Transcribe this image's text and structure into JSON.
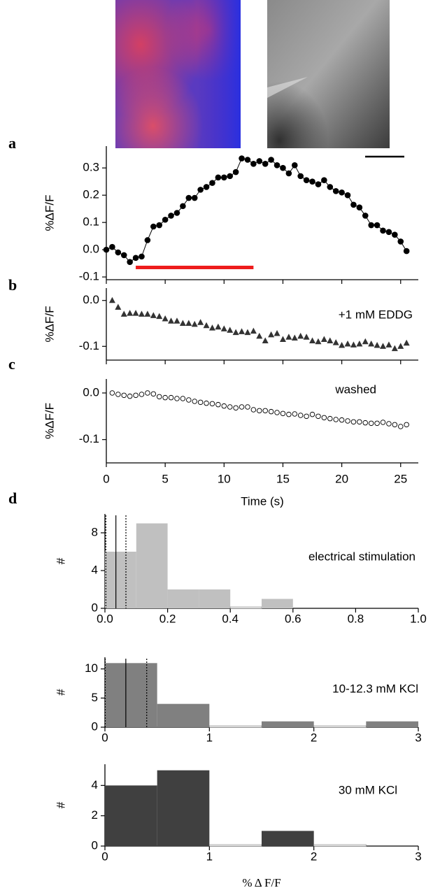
{
  "chart_data": [
    {
      "type": "line",
      "panel_label": "a",
      "ylabel": "%ΔF/F",
      "marker": "circle",
      "connect": true,
      "color": "#000000",
      "x": [
        0,
        0.5,
        1,
        1.5,
        2,
        2.5,
        3,
        3.5,
        4,
        4.5,
        5,
        5.5,
        6,
        6.5,
        7,
        7.5,
        8,
        8.5,
        9,
        9.5,
        10,
        10.5,
        11,
        11.5,
        12,
        12.5,
        13,
        13.5,
        14,
        14.5,
        15,
        15.5,
        16,
        16.5,
        17,
        17.5,
        18,
        18.5,
        19,
        19.5,
        20,
        20.5,
        21,
        21.5,
        22,
        22.5,
        23,
        23.5,
        24,
        24.5,
        25,
        25.5
      ],
      "values": [
        0.0,
        0.01,
        -0.01,
        -0.02,
        -0.045,
        -0.03,
        -0.025,
        0.035,
        0.085,
        0.09,
        0.11,
        0.125,
        0.135,
        0.16,
        0.19,
        0.19,
        0.22,
        0.23,
        0.245,
        0.265,
        0.265,
        0.27,
        0.285,
        0.335,
        0.33,
        0.315,
        0.325,
        0.315,
        0.33,
        0.31,
        0.3,
        0.28,
        0.31,
        0.27,
        0.255,
        0.25,
        0.24,
        0.255,
        0.23,
        0.215,
        0.21,
        0.2,
        0.165,
        0.155,
        0.125,
        0.09,
        0.09,
        0.07,
        0.065,
        0.055,
        0.03,
        -0.005
      ],
      "xlim": [
        0,
        26.5
      ],
      "ylim": [
        -0.11,
        0.38
      ],
      "yticks": [
        -0.1,
        {
          "value": 0,
          "label": "0.0"
        },
        0.1,
        0.2,
        0.3
      ],
      "stimulus": {
        "x": [
          2.5,
          12.5
        ],
        "y": -0.065,
        "color": "#ee1c1c"
      }
    },
    {
      "type": "line",
      "panel_label": "b",
      "ylabel": "%ΔF/F",
      "marker": "triangle",
      "connect": false,
      "color": "#333333",
      "annotation": "+1 mM EDDG",
      "x": [
        0.5,
        1,
        1.5,
        2,
        2.5,
        3,
        3.5,
        4,
        4.5,
        5,
        5.5,
        6,
        6.5,
        7,
        7.5,
        8,
        8.5,
        9,
        9.5,
        10,
        10.5,
        11,
        11.5,
        12,
        12.5,
        13,
        13.5,
        14,
        14.5,
        15,
        15.5,
        16,
        16.5,
        17,
        17.5,
        18,
        18.5,
        19,
        19.5,
        20,
        20.5,
        21,
        21.5,
        22,
        22.5,
        23,
        23.5,
        24,
        24.5,
        25,
        25.5
      ],
      "values": [
        0.0,
        -0.015,
        -0.03,
        -0.028,
        -0.028,
        -0.03,
        -0.03,
        -0.033,
        -0.035,
        -0.04,
        -0.045,
        -0.045,
        -0.05,
        -0.05,
        -0.052,
        -0.048,
        -0.055,
        -0.06,
        -0.058,
        -0.062,
        -0.065,
        -0.07,
        -0.068,
        -0.07,
        -0.067,
        -0.078,
        -0.088,
        -0.075,
        -0.072,
        -0.085,
        -0.08,
        -0.082,
        -0.078,
        -0.08,
        -0.088,
        -0.09,
        -0.085,
        -0.088,
        -0.092,
        -0.098,
        -0.095,
        -0.097,
        -0.095,
        -0.09,
        -0.095,
        -0.098,
        -0.1,
        -0.097,
        -0.105,
        -0.1,
        -0.093
      ],
      "xlim": [
        0,
        26.5
      ],
      "ylim": [
        -0.13,
        0.027
      ],
      "yticks": [
        {
          "value": -0.1,
          "label": "-0.1"
        },
        {
          "value": 0,
          "label": "0.0"
        }
      ]
    },
    {
      "type": "line",
      "panel_label": "c",
      "ylabel": "%ΔF/F",
      "xlabel": "Time (s)",
      "marker": "circle-open",
      "connect": false,
      "color": "#000000",
      "annotation": "washed",
      "x": [
        0.5,
        1,
        1.5,
        2,
        2.5,
        3,
        3.5,
        4,
        4.5,
        5,
        5.5,
        6,
        6.5,
        7,
        7.5,
        8,
        8.5,
        9,
        9.5,
        10,
        10.5,
        11,
        11.5,
        12,
        12.5,
        13,
        13.5,
        14,
        14.5,
        15,
        15.5,
        16,
        16.5,
        17,
        17.5,
        18,
        18.5,
        19,
        19.5,
        20,
        20.5,
        21,
        21.5,
        22,
        22.5,
        23,
        23.5,
        24,
        24.5,
        25,
        25.5
      ],
      "values": [
        0,
        -0.003,
        -0.005,
        -0.007,
        -0.005,
        -0.003,
        0,
        -0.002,
        -0.008,
        -0.01,
        -0.01,
        -0.012,
        -0.012,
        -0.015,
        -0.018,
        -0.02,
        -0.022,
        -0.023,
        -0.025,
        -0.028,
        -0.03,
        -0.032,
        -0.03,
        -0.03,
        -0.036,
        -0.038,
        -0.038,
        -0.04,
        -0.042,
        -0.044,
        -0.046,
        -0.045,
        -0.048,
        -0.05,
        -0.046,
        -0.05,
        -0.053,
        -0.055,
        -0.057,
        -0.058,
        -0.06,
        -0.062,
        -0.062,
        -0.064,
        -0.065,
        -0.065,
        -0.063,
        -0.066,
        -0.068,
        -0.072,
        -0.068
      ],
      "xlim": [
        0,
        26.5
      ],
      "ylim": [
        -0.15,
        0.03
      ],
      "xticks": [
        0,
        5,
        10,
        15,
        20,
        25
      ],
      "yticks": [
        {
          "value": -0.1,
          "label": "-0.1"
        },
        {
          "value": 0,
          "label": "0.0"
        }
      ]
    },
    {
      "type": "histogram",
      "panel_label": "d",
      "ylabel": "#",
      "annotation": "electrical stimulation",
      "color": "#c0c0c0",
      "bins": [
        0,
        0.1,
        0.2,
        0.3,
        0.4,
        0.5,
        0.6
      ],
      "values": [
        6,
        9,
        2,
        2,
        0,
        1
      ],
      "xlim": [
        0,
        1
      ],
      "ylim": [
        0,
        10
      ],
      "xticks": [
        {
          "value": 0,
          "label": "0.0"
        },
        0.2,
        0.4,
        0.6,
        0.8,
        {
          "value": 1,
          "label": "1.0"
        }
      ],
      "yticks": [
        0,
        4,
        8
      ],
      "vlines": [
        {
          "x": 0.035,
          "style": "solid"
        },
        {
          "x": 0.003,
          "style": "dotted"
        },
        {
          "x": 0.067,
          "style": "dotted"
        }
      ]
    },
    {
      "type": "histogram",
      "ylabel": "#",
      "annotation": "10-12.3 mM KCl",
      "color": "#808080",
      "bins": [
        0,
        0.5,
        1,
        1.5,
        2,
        2.5,
        3
      ],
      "values": [
        11,
        4,
        0,
        1,
        0,
        1
      ],
      "xlim": [
        0,
        3
      ],
      "ylim": [
        0,
        12
      ],
      "xticks": [
        0,
        1,
        2,
        3
      ],
      "yticks": [
        0,
        5,
        10
      ],
      "vlines": [
        {
          "x": 0.2,
          "style": "solid"
        },
        {
          "x": 0.003,
          "style": "dotted"
        },
        {
          "x": 0.4,
          "style": "dotted"
        }
      ]
    },
    {
      "type": "histogram",
      "ylabel": "#",
      "xlabel": "% Δ F/F",
      "annotation": "30 mM KCl",
      "color": "#404040",
      "bins": [
        0,
        0.5,
        1,
        1.5,
        2,
        2.5
      ],
      "values": [
        4,
        5,
        0,
        1,
        0
      ],
      "xlim": [
        0,
        3
      ],
      "ylim": [
        0,
        5.4
      ],
      "xticks": [
        0,
        1,
        2,
        3
      ],
      "yticks": [
        0,
        2,
        4
      ]
    }
  ]
}
